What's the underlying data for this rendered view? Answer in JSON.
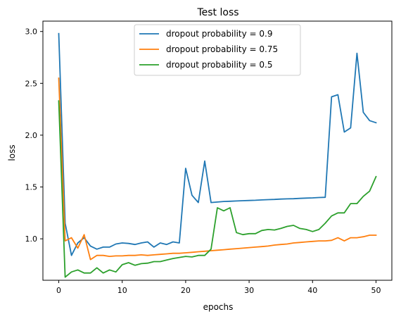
{
  "chart_data": {
    "type": "line",
    "title": "Test loss",
    "xlabel": "epochs",
    "ylabel": "loss",
    "xlim": [
      -2.5,
      52.5
    ],
    "ylim": [
      0.6,
      3.1
    ],
    "xticks": [
      0,
      10,
      20,
      30,
      40,
      50
    ],
    "yticks": [
      1.0,
      1.5,
      2.0,
      2.5,
      3.0
    ],
    "ytick_labels": [
      "1.0",
      "1.5",
      "2.0",
      "2.5",
      "3.0"
    ],
    "grid": false,
    "legend_position": "top-center",
    "x": [
      0,
      1,
      2,
      3,
      4,
      5,
      6,
      7,
      8,
      9,
      10,
      11,
      12,
      13,
      14,
      15,
      16,
      17,
      18,
      19,
      20,
      21,
      22,
      23,
      24,
      25,
      26,
      27,
      28,
      29,
      30,
      31,
      32,
      33,
      34,
      35,
      36,
      37,
      38,
      39,
      40,
      41,
      42,
      43,
      44,
      45,
      46,
      47,
      48,
      49,
      50
    ],
    "series": [
      {
        "name": "dropout probability = 0.9",
        "color": "#1f77b4",
        "values": [
          2.98,
          1.15,
          0.84,
          0.96,
          1.01,
          0.93,
          0.9,
          0.92,
          0.92,
          0.95,
          0.96,
          0.955,
          0.945,
          0.96,
          0.97,
          0.92,
          0.96,
          0.945,
          0.97,
          0.96,
          1.68,
          1.42,
          1.35,
          1.75,
          1.35,
          1.355,
          1.36,
          1.362,
          1.365,
          1.368,
          1.37,
          1.372,
          1.375,
          1.378,
          1.38,
          1.383,
          1.385,
          1.387,
          1.39,
          1.393,
          1.395,
          1.398,
          1.4,
          2.37,
          2.39,
          2.03,
          2.07,
          2.79,
          2.22,
          2.14,
          2.12
        ]
      },
      {
        "name": "dropout probability = 0.75",
        "color": "#ff7f0e",
        "values": [
          2.55,
          0.98,
          1.01,
          0.91,
          1.04,
          0.8,
          0.84,
          0.84,
          0.83,
          0.835,
          0.835,
          0.84,
          0.84,
          0.845,
          0.84,
          0.845,
          0.85,
          0.855,
          0.86,
          0.86,
          0.865,
          0.87,
          0.875,
          0.88,
          0.885,
          0.89,
          0.895,
          0.9,
          0.905,
          0.91,
          0.915,
          0.92,
          0.925,
          0.93,
          0.94,
          0.945,
          0.95,
          0.96,
          0.965,
          0.97,
          0.975,
          0.98,
          0.98,
          0.985,
          1.01,
          0.98,
          1.01,
          1.01,
          1.02,
          1.035,
          1.035
        ]
      },
      {
        "name": "dropout probability = 0.5",
        "color": "#2ca02c",
        "values": [
          2.33,
          0.63,
          0.68,
          0.7,
          0.67,
          0.67,
          0.72,
          0.67,
          0.7,
          0.68,
          0.75,
          0.77,
          0.745,
          0.76,
          0.765,
          0.78,
          0.78,
          0.795,
          0.81,
          0.82,
          0.83,
          0.825,
          0.84,
          0.84,
          0.9,
          1.3,
          1.27,
          1.3,
          1.06,
          1.04,
          1.05,
          1.05,
          1.08,
          1.09,
          1.085,
          1.1,
          1.12,
          1.13,
          1.1,
          1.09,
          1.07,
          1.09,
          1.15,
          1.22,
          1.25,
          1.25,
          1.34,
          1.34,
          1.41,
          1.46,
          1.6
        ]
      }
    ]
  }
}
